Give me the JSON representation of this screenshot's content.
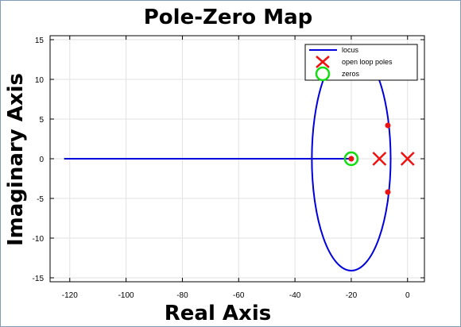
{
  "chart_data": {
    "type": "scatter",
    "title": "Pole-Zero Map",
    "xlabel": "Real Axis",
    "ylabel": "Imaginary Axis",
    "xlim": [
      -127,
      6
    ],
    "ylim": [
      -15.5,
      15.5
    ],
    "xticks": [
      -120,
      -100,
      -80,
      -60,
      -40,
      -20,
      0
    ],
    "yticks": [
      -15,
      -10,
      -5,
      0,
      5,
      10,
      15
    ],
    "grid": true,
    "legend_position": "top-right",
    "colors": {
      "locus": "#0000dd",
      "poles": "#ee1111",
      "zeros": "#11dd11",
      "points": "#ee1111",
      "grid": "#e2e2e2"
    },
    "series": [
      {
        "name": "locus",
        "kind": "line",
        "segments": [
          {
            "x": [
              -122,
              -20
            ],
            "y": [
              0,
              0
            ]
          },
          {
            "ellipse": {
              "cx": -20,
              "cy": 0,
              "rx": 14,
              "ry": 14.1
            }
          }
        ]
      },
      {
        "name": "open loop poles",
        "kind": "marker-x",
        "points": [
          {
            "x": -10,
            "y": 0
          },
          {
            "x": 0,
            "y": 0
          }
        ]
      },
      {
        "name": "zeros",
        "kind": "marker-circle",
        "points": [
          {
            "x": -20,
            "y": 0
          }
        ]
      },
      {
        "name": "",
        "kind": "marker-dot",
        "points": [
          {
            "x": -20,
            "y": 0
          },
          {
            "x": -7,
            "y": 4.2
          },
          {
            "x": -7,
            "y": -4.2
          }
        ]
      }
    ]
  }
}
